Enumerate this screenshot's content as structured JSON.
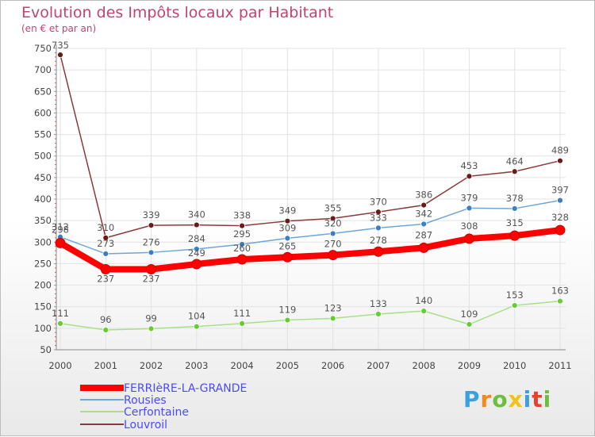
{
  "title": "Evolution des Impôts locaux par Habitant",
  "subtitle": "(en € et par an)",
  "chart_data": {
    "type": "line",
    "title": "Evolution des Impôts locaux par Habitant",
    "ylabel": "(en € et par an)",
    "xlabel": "",
    "ylim": [
      50,
      750
    ],
    "yticks": [
      50,
      100,
      150,
      200,
      250,
      300,
      350,
      400,
      450,
      500,
      550,
      600,
      650,
      700,
      750
    ],
    "categories": [
      "2000",
      "2001",
      "2002",
      "2003",
      "2004",
      "2005",
      "2006",
      "2007",
      "2008",
      "2009",
      "2010",
      "2011"
    ],
    "series": [
      {
        "name": "FERRIèRE-LA-GRANDE",
        "color": "#ff0000",
        "values": [
          298,
          237,
          237,
          249,
          260,
          265,
          270,
          278,
          287,
          308,
          315,
          328
        ]
      },
      {
        "name": "Rousies",
        "color": "#5b9bd5",
        "values": [
          312,
          273,
          276,
          284,
          295,
          309,
          320,
          333,
          342,
          379,
          378,
          397
        ]
      },
      {
        "name": "Cerfontaine",
        "color": "#99dd66",
        "values": [
          111,
          96,
          99,
          104,
          111,
          119,
          123,
          133,
          140,
          109,
          153,
          163
        ]
      },
      {
        "name": "Louvroil",
        "color": "#7b2b2b",
        "values": [
          735,
          310,
          339,
          340,
          338,
          349,
          355,
          370,
          386,
          453,
          464,
          489
        ]
      }
    ]
  },
  "logo": {
    "text": "Proxiti"
  }
}
